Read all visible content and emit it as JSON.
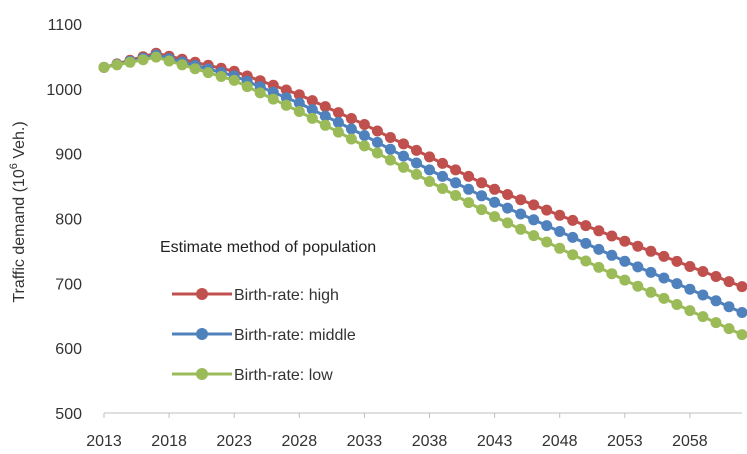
{
  "chart_data": {
    "type": "line",
    "ylabel_main": "Traffic demand (10",
    "ylabel_sup": "6",
    "ylabel_tail": " Veh.)",
    "xlabel": "",
    "x_tick_labels": [
      "2013",
      "2018",
      "2023",
      "2028",
      "2033",
      "2038",
      "2043",
      "2048",
      "2053",
      "2058"
    ],
    "x_ticks": [
      2013,
      2018,
      2023,
      2028,
      2033,
      2038,
      2043,
      2048,
      2053,
      2058
    ],
    "y_tick_labels": [
      "500",
      "600",
      "700",
      "800",
      "900",
      "1000",
      "1100"
    ],
    "y_ticks": [
      500,
      600,
      700,
      800,
      900,
      1000,
      1100
    ],
    "ylim": [
      500,
      1100
    ],
    "xlim": [
      2013,
      2062
    ],
    "grid": false,
    "legend_title": "Estimate method of population",
    "legend_placement": "center-left",
    "series": [
      {
        "name": "Birth-rate: high",
        "color": "#c0504d",
        "x": [
          2013,
          2017,
          2023,
          2028,
          2033,
          2038,
          2043,
          2048,
          2053,
          2058,
          2062
        ],
        "values": [
          1033,
          1055,
          1027,
          991,
          945,
          895,
          845,
          805,
          765,
          726,
          695
        ]
      },
      {
        "name": "Birth-rate: middle",
        "color": "#4f81bd",
        "x": [
          2013,
          2017,
          2023,
          2028,
          2033,
          2038,
          2043,
          2048,
          2053,
          2058,
          2062
        ],
        "values": [
          1033,
          1052,
          1020,
          978,
          928,
          875,
          825,
          780,
          734,
          691,
          655
        ]
      },
      {
        "name": "Birth-rate: low",
        "color": "#9bbb59",
        "x": [
          2013,
          2017,
          2023,
          2028,
          2033,
          2038,
          2043,
          2048,
          2053,
          2058,
          2062
        ],
        "values": [
          1033,
          1049,
          1013,
          965,
          912,
          857,
          803,
          754,
          705,
          658,
          621
        ]
      }
    ]
  }
}
